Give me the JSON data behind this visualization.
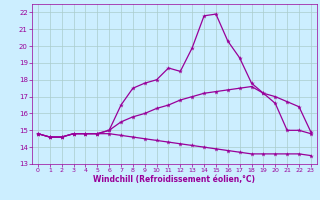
{
  "xlabel": "Windchill (Refroidissement éolien,°C)",
  "bg_color": "#cceeff",
  "line_color": "#990099",
  "grid_color": "#aacccc",
  "xlim": [
    -0.5,
    23.5
  ],
  "ylim": [
    13,
    22.5
  ],
  "xticks": [
    0,
    1,
    2,
    3,
    4,
    5,
    6,
    7,
    8,
    9,
    10,
    11,
    12,
    13,
    14,
    15,
    16,
    17,
    18,
    19,
    20,
    21,
    22,
    23
  ],
  "yticks": [
    13,
    14,
    15,
    16,
    17,
    18,
    19,
    20,
    21,
    22
  ],
  "line1_x": [
    0,
    1,
    2,
    3,
    4,
    5,
    6,
    7,
    8,
    9,
    10,
    11,
    12,
    13,
    14,
    15,
    16,
    17,
    18,
    19,
    20,
    21,
    22,
    23
  ],
  "line1_y": [
    14.8,
    14.6,
    14.6,
    14.8,
    14.8,
    14.8,
    15.0,
    16.5,
    17.5,
    17.8,
    18.0,
    18.7,
    18.5,
    19.9,
    21.8,
    21.9,
    20.3,
    19.3,
    17.8,
    17.2,
    16.6,
    15.0,
    15.0,
    14.8
  ],
  "line2_x": [
    0,
    1,
    2,
    3,
    4,
    5,
    6,
    7,
    8,
    9,
    10,
    11,
    12,
    13,
    14,
    15,
    16,
    17,
    18,
    19,
    20,
    21,
    22,
    23
  ],
  "line2_y": [
    14.8,
    14.6,
    14.6,
    14.8,
    14.8,
    14.8,
    14.8,
    14.7,
    14.6,
    14.5,
    14.4,
    14.3,
    14.2,
    14.1,
    14.0,
    13.9,
    13.8,
    13.7,
    13.6,
    13.6,
    13.6,
    13.6,
    13.6,
    13.5
  ],
  "line3_x": [
    0,
    1,
    2,
    3,
    4,
    5,
    6,
    7,
    8,
    9,
    10,
    11,
    12,
    13,
    14,
    15,
    16,
    17,
    18,
    19,
    20,
    21,
    22,
    23
  ],
  "line3_y": [
    14.8,
    14.6,
    14.6,
    14.8,
    14.8,
    14.8,
    15.0,
    15.5,
    15.8,
    16.0,
    16.3,
    16.5,
    16.8,
    17.0,
    17.2,
    17.3,
    17.4,
    17.5,
    17.6,
    17.2,
    17.0,
    16.7,
    16.4,
    14.9
  ]
}
